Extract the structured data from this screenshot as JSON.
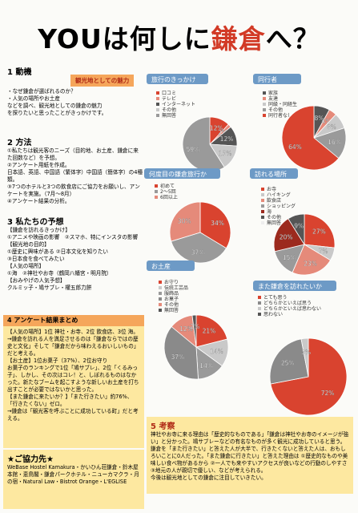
{
  "title": {
    "prefix": "YOUは何しに",
    "highlight": "鎌倉",
    "suffix": "へ？"
  },
  "sections": [
    {
      "heading": "1 動機",
      "tag": "観光地としての魅力",
      "body": [
        "・なぜ鎌倉が選ばれるのか？",
        "・人気の場所やお土産",
        "などを調べ、観光地としての鎌倉の魅力",
        "を探りたいと思ったことがきっかけです。"
      ]
    },
    {
      "heading": "2 方法",
      "body": [
        "①私たちは観光客のニーズ（目的地、お土産、鎌倉に来た回数など）を予想。",
        "②アンケート用紙を作成。",
        "日本語、英語、中国語（繁体字）中国語（簡体字）の4種類。",
        "③7つのホテルと3つの飲食店にご協力をお願いし、アンケートを実施。（7月〜8月）",
        "④アンケート結果の分析。"
      ]
    },
    {
      "heading": "3 私たちの予想",
      "body": [
        "【鎌倉を訪れるきっかけ】",
        "①アニメや映画の影響　②スマホ、特にインスタの影響",
        "【観光地の目的】",
        "①歴史に興味がある ②日本文化を知りたい",
        "③日本食を食べてみたい",
        "【人気の場所】",
        "①海　②神社やお寺（鶴岡八幡宮・明月院）",
        "【おみやげの人気予想】",
        "クルミッ子・鳩サブレ・權五郎力餅"
      ]
    },
    {
      "heading": "4 アンケート結果まとめ",
      "body": [
        "【人気の場所】1位 神社・お寺、2位 飲食店、3位 海。",
        "→鎌倉を訪れる人を満足させるのは「鎌倉ならではの歴史と文化」そして「鎌倉だから味わえるおいしいもの」だと考える。",
        "【お土産】1位お菓子（37%）、2位お守り",
        "お菓子のランキングで1位「鳩サブレ」、2位「くるみっ子」、しかし、その次はコレ！と、しぼれるものはなかった。新たなブームを起こすような新しいお土産を打ち出すことが必要ではないかと思った。",
        "【また鎌倉に来たいか？】「また行きたい」約76%、「行きたくない」ゼロ。",
        "→鎌倉は「観光客を呼ぶことに成功している町」だと考える。"
      ]
    },
    {
      "heading": "5 考察",
      "body": [
        "神社やお寺に来る理由は「歴史的なものである」「鎌倉は神社やお寺のイメージが強い」と分かった。鳩サブレーなどの有名なものが多く観光に成功していると思う。",
        "鎌倉を「また行きたい」と答えた人が大半で、行きたくないと答えた人は、おもしろいことに0人だった。「また鎌倉に行きたい」と答えた理由は ①歴史的なものや美味しい食べ物があるから ②一人でも来やすいアクセスが良いなどの行動のしやすさ ③地元の人が親切で優しい、などが考えられる。",
        "今後は観光地としての鎌倉に注目していきたい。"
      ]
    },
    {
      "heading": "★ご協力先★",
      "body": [
        "WeBase Hostel Kamakura・かいひん荘鎌倉・鈴木屋本館・恵鳥閣・鎌倉パークホテル・ニューカマクラ・月の宿・Natural Law・Bistrot Orange・L'EGLISE"
      ]
    }
  ],
  "pies": [
    {
      "title": "旅行のきっかけ",
      "labels": [
        "口コミ",
        "テレビ",
        "インターネット",
        "その他",
        "無回答"
      ],
      "values": [
        12,
        2,
        12,
        15,
        59
      ],
      "value_labels": [
        "12%",
        "2%",
        "12%",
        "15%",
        "59%"
      ],
      "colors": [
        "#d9432f",
        "#e58a7a",
        "#555555",
        "#c9c9c9",
        "#9a9a9a"
      ]
    },
    {
      "title": "同行者",
      "labels": [
        "家族",
        "友達",
        "同級・同経生",
        "その他",
        "同行者なし"
      ],
      "values": [
        8,
        4,
        8,
        16,
        64
      ],
      "value_labels": [
        "8%",
        "4%",
        "8%",
        "16%",
        "64%"
      ],
      "colors": [
        "#555555",
        "#e58a7a",
        "#c9c9c9",
        "#9a9a9a",
        "#d9432f"
      ]
    },
    {
      "title": "何度目の鎌倉旅行か",
      "labels": [
        "初めて",
        "2〜5回",
        "6回以上"
      ],
      "values": [
        34,
        37,
        30
      ],
      "value_labels": [
        "34%",
        "37%",
        "30%"
      ],
      "colors": [
        "#d9432f",
        "#9a9a9a",
        "#e58a7a"
      ]
    },
    {
      "title": "訪れる場所",
      "labels": [
        "お寺",
        "ハイキング",
        "飲食店",
        "ショッピング",
        "海",
        "その他",
        "無回答"
      ],
      "values": [
        27,
        7,
        23,
        15,
        20,
        9,
        null
      ],
      "value_labels": [
        "27%",
        "7%",
        "23%",
        "15%",
        "20%",
        "9%",
        null
      ],
      "colors": [
        "#d9432f",
        "#c9c9c9",
        "#e58a7a",
        "#9a9a9a",
        "#9c2a1e",
        "#555555",
        "#eeeeee"
      ]
    },
    {
      "title": "お土産",
      "labels": [
        "お守り",
        "伝統工芸品",
        "服飾品",
        "お菓子",
        "その他",
        "無回答"
      ],
      "values": [
        21,
        14,
        14,
        37,
        12,
        2
      ],
      "value_labels": [
        "21%",
        "14%",
        "14%",
        "37%",
        "12%",
        "2%"
      ],
      "colors": [
        "#d9432f",
        "#c9c9c9",
        "#9a9a9a",
        "#8a8a8a",
        "#e58a7a",
        "#555555"
      ]
    },
    {
      "title": "また鎌倉を訪れたいか",
      "labels": [
        "とても思う",
        "どちらかといえば思う",
        "どちらかといえば思わない",
        "思わない"
      ],
      "values": [
        72,
        25,
        3,
        null
      ],
      "value_labels": [
        "72%",
        "25%",
        "3%",
        null
      ],
      "colors": [
        "#d9432f",
        "#8a8a8a",
        "#c9c9c9",
        "#555555"
      ]
    }
  ]
}
